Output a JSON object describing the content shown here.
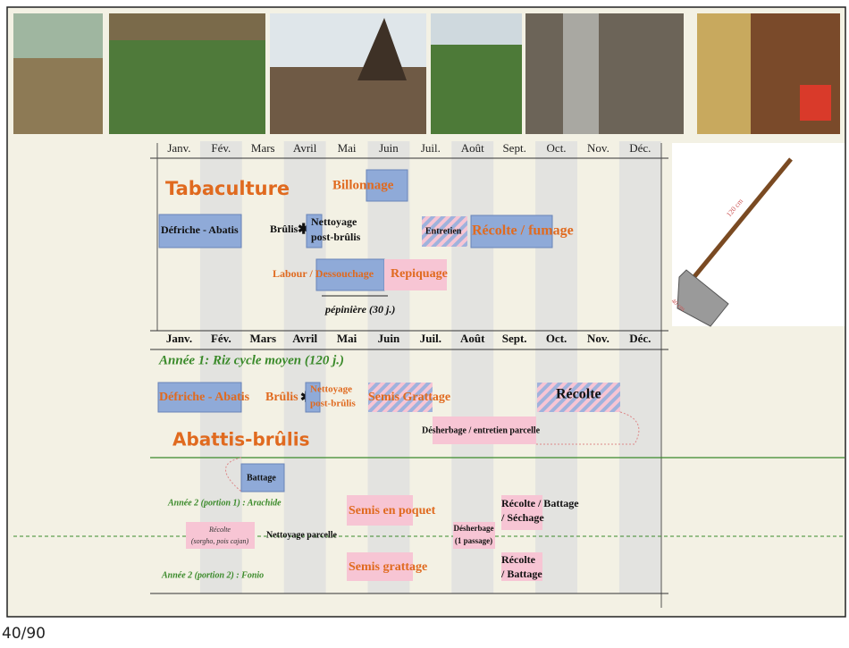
{
  "calendar_top": {
    "months": [
      "Janv.",
      "Fév.",
      "Mars",
      "Avril",
      "Mai",
      "Juin",
      "Juil.",
      "Août",
      "Sept.",
      "Oct.",
      "Nov.",
      "Déc."
    ],
    "title": "Tabaculture",
    "billonnage": "Billonnage",
    "defriche": "Défriche - Abatis",
    "brulis": "Brûlis",
    "nettoyage": [
      "Nettoyage",
      "post-brûlis"
    ],
    "entretien": "Entretien",
    "recolte": "Récolte / fumage",
    "labour": "Labour / Dessouchage",
    "repiquage": "Repiquage",
    "pepiniere": "pépinière (30 j.)"
  },
  "tool": {
    "length": "120 cm",
    "width": "40 cm"
  },
  "calendar_bottom": {
    "months": [
      "Janv.",
      "Fév.",
      "Mars",
      "Avril",
      "Mai",
      "Juin",
      "Juil.",
      "Août",
      "Sept.",
      "Oct.",
      "Nov.",
      "Déc."
    ],
    "year1": "Année 1: Riz cycle moyen (120 j.)",
    "defriche": "Défriche - Abatis",
    "brulis": "Brûlis",
    "nettoyage": [
      "Nettoyage",
      "post-brûlis"
    ],
    "semis": "Semis Grattage",
    "recolte": "Récolte",
    "desherbage": "Désherbage / entretien parcelle",
    "title": "Abattis-brûlis",
    "battage": "Battage",
    "portion1": "Année 2 (portion 1) : Arachide",
    "semis_poquet": "Semis en poquet",
    "desherbage2": [
      "Désherbage",
      "(1 passage)"
    ],
    "recolte_battage_sechage": [
      "Récolte / Battage",
      "/ Séchage"
    ],
    "recolte_sorgho": [
      "Récolte",
      "(sorgho, pois cajan)"
    ],
    "nettoyage_parcelle": "Nettoyage parcelle",
    "semis_grattage": "Semis grattage",
    "recolte_battage": [
      "Récolte",
      "/ Battage"
    ],
    "portion2": "Année 2 (portion 2) : Fonio"
  },
  "footer": {
    "page": "40/90"
  }
}
